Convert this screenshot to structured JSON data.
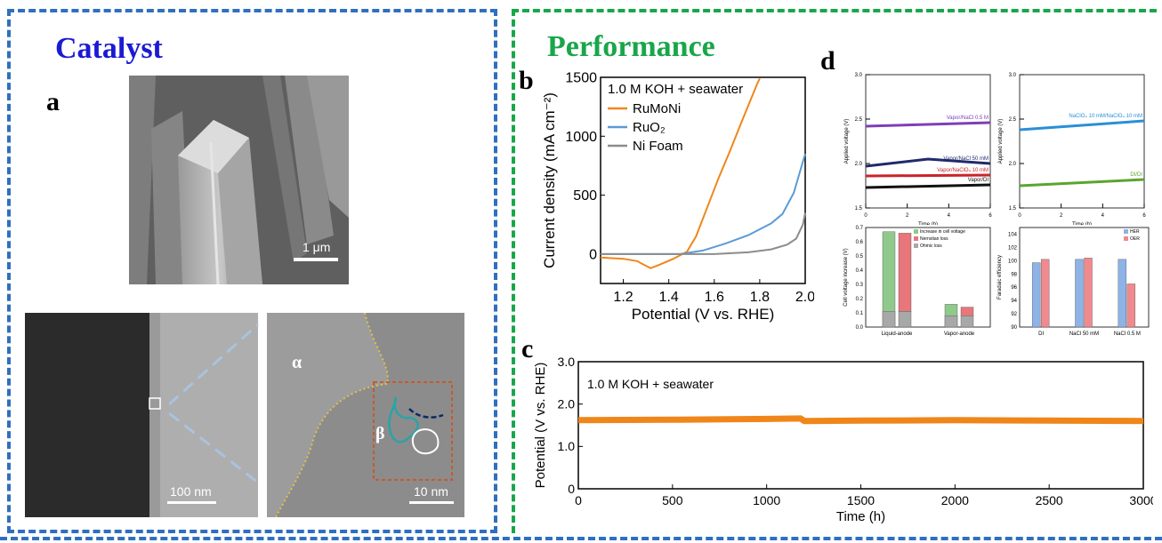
{
  "catalyst": {
    "title": "Catalyst",
    "panel_a_label": "a",
    "sem_scale": "1 μm",
    "tem_scale_left": "100 nm",
    "tem_scale_right": "10 nm",
    "alpha_label": "α",
    "beta_label": "β"
  },
  "performance": {
    "title": "Performance",
    "panel_b_label": "b",
    "panel_c_label": "c",
    "panel_d_label": "d"
  },
  "colors": {
    "catalyst_blue": "#1a1ad6",
    "performance_green": "#19a64a",
    "ruMoNi": "#f0861a",
    "ruO2": "#5b9bd5",
    "niFoam": "#8c8c8c"
  },
  "chart_data": [
    {
      "id": "b",
      "type": "line",
      "annotation": "1.0 M KOH + seawater",
      "xlabel": "Potential (V vs. RHE)",
      "ylabel": "Current density (mA cm⁻²)",
      "xlim": [
        1.1,
        2.0
      ],
      "ylim": [
        -250,
        1500
      ],
      "xticks": [
        "1.2",
        "1.4",
        "1.6",
        "1.8",
        "2.0"
      ],
      "yticks": [
        "0",
        "500",
        "1000",
        "1500"
      ],
      "series": [
        {
          "name": "RuMoNi",
          "color": "#f0861a",
          "x": [
            1.1,
            1.2,
            1.26,
            1.3,
            1.32,
            1.36,
            1.42,
            1.48,
            1.52,
            1.57,
            1.62,
            1.67,
            1.72,
            1.76,
            1.79,
            1.8
          ],
          "y": [
            -30,
            -40,
            -60,
            -100,
            -120,
            -90,
            -40,
            20,
            150,
            400,
            650,
            880,
            1120,
            1310,
            1450,
            1490
          ]
        },
        {
          "name": "RuO₂",
          "color": "#5b9bd5",
          "x": [
            1.1,
            1.45,
            1.55,
            1.65,
            1.75,
            1.85,
            1.9,
            1.95,
            1.98,
            2.0
          ],
          "y": [
            0,
            0,
            30,
            90,
            160,
            260,
            340,
            520,
            720,
            850
          ]
        },
        {
          "name": "Ni Foam",
          "color": "#8c8c8c",
          "x": [
            1.1,
            1.6,
            1.75,
            1.85,
            1.92,
            1.96,
            1.99,
            2.0
          ],
          "y": [
            0,
            0,
            15,
            40,
            80,
            130,
            250,
            350
          ]
        }
      ]
    },
    {
      "id": "c",
      "type": "line",
      "annotation": "1.0 M KOH + seawater",
      "xlabel": "Time (h)",
      "ylabel": "Potential (V vs. RHE)",
      "xlim": [
        0,
        3000
      ],
      "ylim": [
        0,
        3.0
      ],
      "xticks": [
        "0",
        "500",
        "1000",
        "1500",
        "2000",
        "2500",
        "3000"
      ],
      "yticks": [
        "0",
        "1.0",
        "2.0",
        "3.0"
      ],
      "series": [
        {
          "name": "",
          "color": "#f0861a",
          "x": [
            0,
            500,
            1000,
            1180,
            1200,
            1500,
            2000,
            2500,
            3000
          ],
          "y": [
            1.62,
            1.63,
            1.65,
            1.66,
            1.6,
            1.61,
            1.62,
            1.61,
            1.6
          ]
        }
      ]
    },
    {
      "id": "d1",
      "type": "line",
      "xlabel": "Time (h)",
      "ylabel": "Applied voltage (V)",
      "xlim": [
        0,
        6
      ],
      "ylim": [
        1.5,
        3.0
      ],
      "xticks": [
        "0",
        "2",
        "4",
        "6"
      ],
      "yticks": [
        "1.5",
        "2.0",
        "2.5",
        "3.0"
      ],
      "series": [
        {
          "name": "Vapor/NaCl 0.5 M",
          "color": "#7e3fb7",
          "x": [
            0,
            6
          ],
          "y": [
            2.42,
            2.46
          ]
        },
        {
          "name": "Vapor/NaCl 50 mM",
          "color": "#1f2a6b",
          "x": [
            0,
            3,
            6
          ],
          "y": [
            1.97,
            2.05,
            2.0
          ]
        },
        {
          "name": "Vapor/NaClO₄ 10 mM",
          "color": "#c9242a",
          "x": [
            0,
            6
          ],
          "y": [
            1.86,
            1.87
          ]
        },
        {
          "name": "Vapor/DI",
          "color": "#111111",
          "x": [
            0,
            6
          ],
          "y": [
            1.73,
            1.76
          ]
        }
      ]
    },
    {
      "id": "d2",
      "type": "line",
      "xlabel": "Time (h)",
      "ylabel": "Applied voltage (V)",
      "xlim": [
        0,
        6
      ],
      "ylim": [
        1.5,
        3.0
      ],
      "xticks": [
        "0",
        "2",
        "4",
        "6"
      ],
      "yticks": [
        "1.5",
        "2.0",
        "2.5",
        "3.0"
      ],
      "series": [
        {
          "name": "NaClO₄ 10 mM/NaClO₄ 10 mM",
          "color": "#2a8fd6",
          "x": [
            0,
            6
          ],
          "y": [
            2.38,
            2.48
          ]
        },
        {
          "name": "DI/DI",
          "color": "#5aa52f",
          "x": [
            0,
            6
          ],
          "y": [
            1.75,
            1.82
          ]
        }
      ]
    },
    {
      "id": "d3",
      "type": "bar",
      "ylabel": "Cell voltage increase (V)",
      "categories": [
        "Liquid-anode",
        "Vapor-anode"
      ],
      "ylim": [
        0,
        0.7
      ],
      "yticks": [
        "0.0",
        "0.1",
        "0.2",
        "0.3",
        "0.4",
        "0.5",
        "0.6",
        "0.7"
      ],
      "series": [
        {
          "name": "Increase in cell voltage",
          "color": "#8fc98b",
          "values": [
            0.67,
            0.16
          ]
        },
        {
          "name": "Nernstian loss",
          "color": "#e8767a",
          "values": [
            0.55,
            0.06
          ]
        },
        {
          "name": "Ohmic loss",
          "color": "#a8a8a8",
          "values": [
            0.11,
            0.08
          ]
        }
      ]
    },
    {
      "id": "d4",
      "type": "bar",
      "ylabel": "Faradaic efficiency",
      "categories": [
        "DI",
        "NaCl 50 mM",
        "NaCl 0.5 M"
      ],
      "ylim": [
        90,
        105
      ],
      "yticks": [
        "90",
        "92",
        "94",
        "96",
        "98",
        "100",
        "102",
        "104"
      ],
      "series": [
        {
          "name": "HER",
          "color": "#8eb3e6",
          "values": [
            99.7,
            100.2,
            100.2
          ]
        },
        {
          "name": "OER",
          "color": "#f08a8e",
          "values": [
            100.2,
            100.4,
            96.5
          ]
        }
      ]
    }
  ]
}
